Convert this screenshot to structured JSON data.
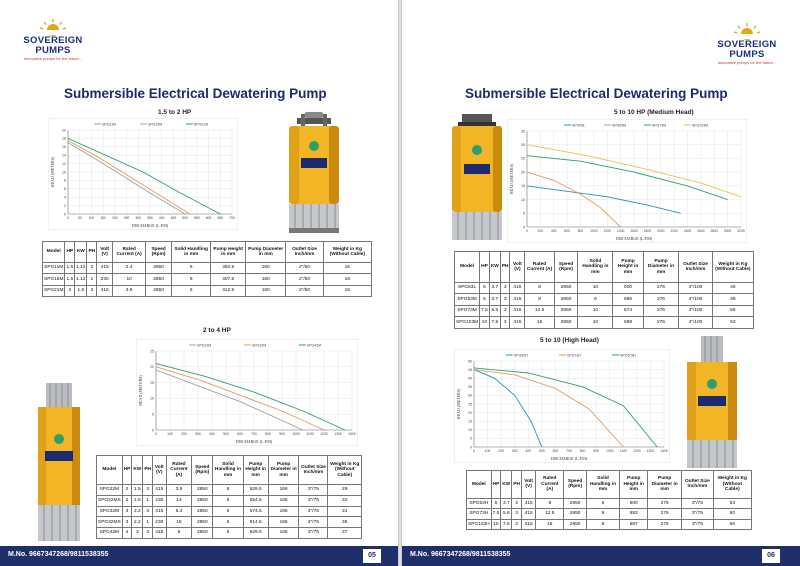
{
  "brand": {
    "line1": "SOVEREIGN",
    "line2": "PUMPS",
    "tagline": "Innovative pumps for the future..."
  },
  "page_left": {
    "title": "Submersible Electrical Dewatering Pump",
    "section1": "1.5 to 2 HP",
    "section2": "2 to 4 HP",
    "footer_phone": "M.No. 9667347268/9811538355",
    "page_number": "05"
  },
  "page_right": {
    "title": "Submersible Electrical Dewatering Pump",
    "section1": "5 to 10 HP (Medium Head)",
    "section2": "5 to 10 (High Head)",
    "footer_phone": "M.No. 9667347268/9811538355",
    "page_number": "06"
  },
  "chart_data": [
    {
      "id": "c1",
      "type": "line",
      "title": "1.5 to 2 HP",
      "xlabel": "DISCHARGE (L.P.M)",
      "ylabel": "HEAD (METERS)",
      "xlim": [
        0,
        700
      ],
      "ylim": [
        0,
        20
      ],
      "xticks": [
        0,
        50,
        100,
        150,
        200,
        250,
        300,
        350,
        400,
        450,
        500,
        550,
        600,
        650,
        700
      ],
      "yticks": [
        0,
        2,
        4,
        6,
        8,
        10,
        12,
        14,
        16,
        18,
        20
      ],
      "series": [
        {
          "name": "SPG11M",
          "color": "#9aa0a6",
          "x": [
            0,
            120,
            250,
            380,
            500
          ],
          "y": [
            17,
            13,
            8.5,
            4,
            0
          ]
        },
        {
          "name": "SPG15M",
          "color": "#e39a5a",
          "x": [
            0,
            130,
            260,
            390,
            520
          ],
          "y": [
            17.5,
            13.5,
            9,
            4.5,
            0
          ]
        },
        {
          "name": "SPG21M",
          "color": "#2e9e6e",
          "x": [
            0,
            160,
            320,
            480,
            650
          ],
          "y": [
            18,
            14,
            10,
            5,
            0
          ]
        }
      ]
    },
    {
      "id": "c2",
      "type": "line",
      "title": "2 to 4 HP",
      "xlabel": "DISCHARGE (L.P.M)",
      "ylabel": "HEAD (METERS)",
      "xlim": [
        0,
        1400
      ],
      "ylim": [
        0,
        25
      ],
      "xticks": [
        0,
        100,
        200,
        300,
        400,
        500,
        600,
        700,
        800,
        900,
        1000,
        1100,
        1200,
        1300,
        1400
      ],
      "yticks": [
        0,
        5,
        10,
        15,
        20,
        25
      ],
      "series": [
        {
          "name": "SPG22M",
          "color": "#9aa0a6",
          "x": [
            0,
            300,
            600,
            900,
            1050
          ],
          "y": [
            19,
            14,
            9,
            3,
            0
          ]
        },
        {
          "name": "SPG32M",
          "color": "#e39a5a",
          "x": [
            0,
            300,
            600,
            900,
            1200
          ],
          "y": [
            20,
            16,
            11,
            6,
            0
          ]
        },
        {
          "name": "SPG42M",
          "color": "#2e9e6e",
          "x": [
            0,
            350,
            700,
            1050,
            1350
          ],
          "y": [
            21,
            17,
            12,
            6,
            0
          ]
        }
      ]
    },
    {
      "id": "c3",
      "type": "line",
      "title": "5 to 10 HP (Medium Head)",
      "xlabel": "DISCHARGE (L.P.M)",
      "ylabel": "HEAD (METERS)",
      "xlim": [
        0,
        3200
      ],
      "ylim": [
        0,
        35
      ],
      "xticks": [
        0,
        200,
        400,
        600,
        800,
        1000,
        1200,
        1400,
        1600,
        1800,
        2000,
        2200,
        2400,
        2600,
        2800,
        3000,
        3200
      ],
      "yticks": [
        0,
        5,
        10,
        15,
        20,
        25,
        30,
        35
      ],
      "series": [
        {
          "name": "SPG53L",
          "color": "#2a8fbf",
          "x": [
            0,
            600,
            1200,
            1800,
            2300
          ],
          "y": [
            15,
            13,
            11,
            8,
            5
          ]
        },
        {
          "name": "SPG53M",
          "color": "#e39a5a",
          "x": [
            0,
            400,
            800,
            1100,
            1400
          ],
          "y": [
            20,
            17,
            12,
            7,
            0
          ]
        },
        {
          "name": "SPG73M",
          "color": "#2e9e6e",
          "x": [
            0,
            800,
            1600,
            2400,
            3000
          ],
          "y": [
            26,
            24,
            20,
            15,
            10
          ]
        },
        {
          "name": "SPG103M",
          "color": "#e8c24a",
          "x": [
            0,
            900,
            1800,
            2600,
            3200
          ],
          "y": [
            30,
            26,
            21,
            16,
            11
          ]
        }
      ]
    },
    {
      "id": "c4",
      "type": "line",
      "title": "5 to 10 (High Head)",
      "xlabel": "DISCHARGE (L.P.M)",
      "ylabel": "HEAD (METERS)",
      "xlim": [
        0,
        1400
      ],
      "ylim": [
        0,
        50
      ],
      "xticks": [
        0,
        100,
        200,
        300,
        400,
        500,
        600,
        700,
        800,
        900,
        1000,
        1100,
        1200,
        1300,
        1400
      ],
      "yticks": [
        0,
        5,
        10,
        15,
        20,
        25,
        30,
        35,
        40,
        45,
        50
      ],
      "series": [
        {
          "name": "SPG53H",
          "color": "#2a8fbf",
          "x": [
            0,
            150,
            300,
            420,
            500
          ],
          "y": [
            45,
            40,
            30,
            15,
            0
          ]
        },
        {
          "name": "SPG73H",
          "color": "#e39a5a",
          "x": [
            0,
            300,
            600,
            850,
            1100
          ],
          "y": [
            45,
            42,
            34,
            22,
            0
          ]
        },
        {
          "name": "SPG103H",
          "color": "#2e9e6e",
          "x": [
            0,
            400,
            800,
            1100,
            1350
          ],
          "y": [
            46,
            43,
            35,
            24,
            0
          ]
        }
      ]
    }
  ],
  "tables": {
    "t1": {
      "headers": [
        "Model",
        "HP",
        "KW",
        "PH",
        "Volt (V)",
        "Rated Current (A)",
        "Speed (Rpm)",
        "Solid Handling in mm",
        "Pump Height in mm",
        "Pump Diameter in mm",
        "Outlet Size Inch/mm",
        "Weight in Kg (Without Cable)"
      ],
      "rows": [
        [
          "SPG11M",
          "1.5",
          "1.12",
          "3",
          "415",
          "2.4",
          "2850",
          "6",
          "382.5",
          "160",
          "2\"/50",
          "16"
        ],
        [
          "SPG15M",
          "1.5",
          "1.12",
          "1",
          "230",
          "10",
          "2850",
          "6",
          "407.5",
          "160",
          "2\"/50",
          "18"
        ],
        [
          "SPG21M",
          "2",
          "1.5",
          "3",
          "415",
          "3.9",
          "2850",
          "6",
          "412.5",
          "160",
          "2\"/50",
          "18"
        ]
      ]
    },
    "t2": {
      "headers": [
        "Model",
        "HP",
        "KW",
        "PH",
        "Volt (V)",
        "Rated Current (A)",
        "Speed (Rpm)",
        "Solid Handling in mm",
        "Pump Height in mm",
        "Pump Diameter in mm",
        "Outlet Size Inch/mm",
        "Weight in Kg (Without Cable)"
      ],
      "rows": [
        [
          "SPG22M",
          "2",
          "1.5",
          "3",
          "415",
          "3.9",
          "2850",
          "6",
          "529.5",
          "166",
          "3\"/75",
          "29"
        ],
        [
          "SPG22MS",
          "2",
          "1.5",
          "1",
          "230",
          "13",
          "2850",
          "6",
          "554.5",
          "166",
          "3\"/75",
          "32"
        ],
        [
          "SPG32M",
          "3",
          "2.2",
          "3",
          "415",
          "5.3",
          "2850",
          "6",
          "574.5",
          "166",
          "3\"/75",
          "31"
        ],
        [
          "SPG32MS",
          "3",
          "2.2",
          "1",
          "230",
          "18",
          "2850",
          "6",
          "614.5",
          "166",
          "3\"/75",
          "36"
        ],
        [
          "SPG42M",
          "4",
          "3",
          "3",
          "415",
          "6",
          "2850",
          "6",
          "629.5",
          "166",
          "3\"/75",
          "37"
        ]
      ]
    },
    "t3": {
      "headers": [
        "Model",
        "HP",
        "KW",
        "PH",
        "Volt (V)",
        "Rated Current (A)",
        "Speed (Rpm)",
        "Solid Handling in mm",
        "Pump Height in mm",
        "Pump Diameter in mm",
        "Outlet Size Inch/mm",
        "Weight in Kg (Without Cable)"
      ],
      "rows": [
        [
          "SPG53L",
          "5",
          "3.7",
          "3",
          "415",
          "8",
          "2850",
          "10",
          "600",
          "276",
          "4\"/100",
          "48"
        ],
        [
          "SPG53M",
          "5",
          "3.7",
          "3",
          "415",
          "8",
          "2850",
          "6",
          "586",
          "276",
          "4\"/100",
          "48"
        ],
        [
          "SPG73M",
          "7.5",
          "5.6",
          "3",
          "415",
          "12.5",
          "2850",
          "10",
          "674",
          "276",
          "4\"/100",
          "55"
        ],
        [
          "SPG103M",
          "10",
          "7.5",
          "3",
          "415",
          "16",
          "2850",
          "10",
          "699",
          "276",
          "4\"/100",
          "63"
        ]
      ]
    },
    "t4": {
      "headers": [
        "Model",
        "HP",
        "KW",
        "PH",
        "Volt (V)",
        "Rated Current (A)",
        "Speed (Rpm)",
        "Solid Handling in mm",
        "Pump Height in mm",
        "Pump Diameter in mm",
        "Outlet Size Inch/mm",
        "Weight in Kg (Without Cable)"
      ],
      "rows": [
        [
          "SPG53H",
          "5",
          "3.7",
          "3",
          "415",
          "8",
          "2850",
          "6",
          "600",
          "276",
          "3\"/75",
          "53"
        ],
        [
          "SPG73H",
          "7.5",
          "5.6",
          "3",
          "415",
          "12.5",
          "2850",
          "6",
          "653",
          "276",
          "3\"/75",
          "60"
        ],
        [
          "SPG103H",
          "10",
          "7.5",
          "3",
          "415",
          "16",
          "2850",
          "8",
          "687",
          "276",
          "3\"/75",
          "66"
        ]
      ]
    }
  },
  "colors": {
    "navy": "#1c2a6e",
    "footer": "#1f2f6a",
    "pump_yellow": "#f2b526",
    "pump_dark": "#c98a0e",
    "steel": "#b9bcc0"
  }
}
